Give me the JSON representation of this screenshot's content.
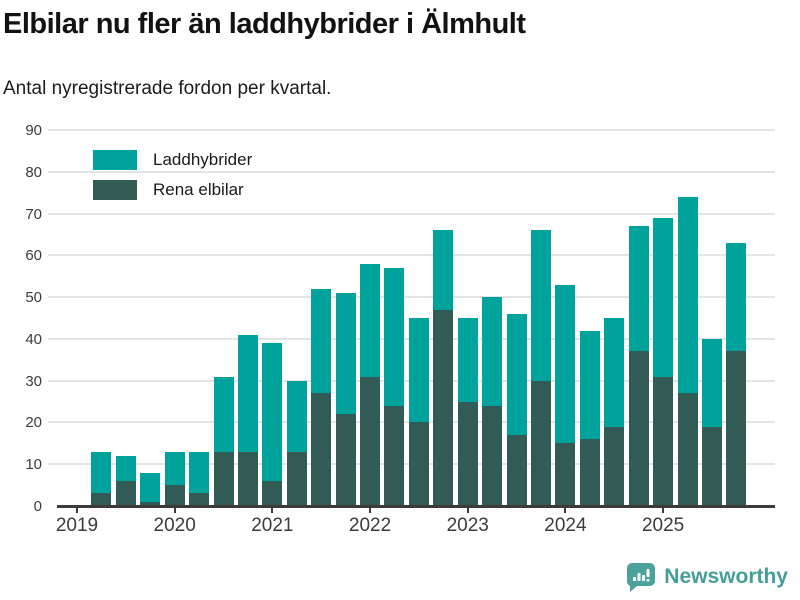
{
  "header": {
    "title": "Elbilar nu fler än laddhybrider i Älmhult",
    "subtitle": "Antal nyregistrerade fordon per kvartal."
  },
  "footer": {
    "brand": "Newsworthy",
    "logo_icon": "bar-chart-speech-bubble-icon",
    "brand_color": "#459e98"
  },
  "chart_data": {
    "type": "bar",
    "stacked": true,
    "stack_order": "first series at bottom",
    "x": [
      "2019Q2",
      "2019Q3",
      "2019Q4",
      "2020Q1",
      "2020Q2",
      "2020Q3",
      "2020Q4",
      "2021Q1",
      "2021Q2",
      "2021Q3",
      "2021Q4",
      "2022Q1",
      "2022Q2",
      "2022Q3",
      "2022Q4",
      "2023Q1",
      "2023Q2",
      "2023Q3",
      "2023Q4",
      "2024Q1",
      "2024Q2",
      "2024Q3",
      "2024Q4",
      "2025Q1",
      "2025Q2",
      "2025Q3",
      "2025Q4"
    ],
    "series": [
      {
        "name": "Rena elbilar",
        "color": "#335b56",
        "values": [
          3,
          6,
          1,
          5,
          3,
          13,
          13,
          6,
          13,
          27,
          22,
          31,
          24,
          20,
          47,
          25,
          24,
          17,
          30,
          15,
          16,
          19,
          37,
          31,
          27,
          19,
          37
        ]
      },
      {
        "name": "Laddhybrider",
        "color": "#00a39b",
        "values": [
          10,
          6,
          7,
          8,
          10,
          18,
          28,
          33,
          17,
          25,
          29,
          27,
          33,
          25,
          19,
          20,
          26,
          29,
          36,
          38,
          26,
          26,
          30,
          38,
          47,
          21,
          26
        ]
      }
    ],
    "legend": [
      "Laddhybrider",
      "Rena elbilar"
    ],
    "legend_position": "top-left",
    "grid": "horizontal",
    "ylim": [
      0,
      90
    ],
    "yticks": [
      0,
      10,
      20,
      30,
      40,
      50,
      60,
      70,
      80,
      90
    ],
    "xticks_years": [
      "2019",
      "2020",
      "2021",
      "2022",
      "2023",
      "2024",
      "2025"
    ],
    "xlabel": "",
    "ylabel": ""
  }
}
